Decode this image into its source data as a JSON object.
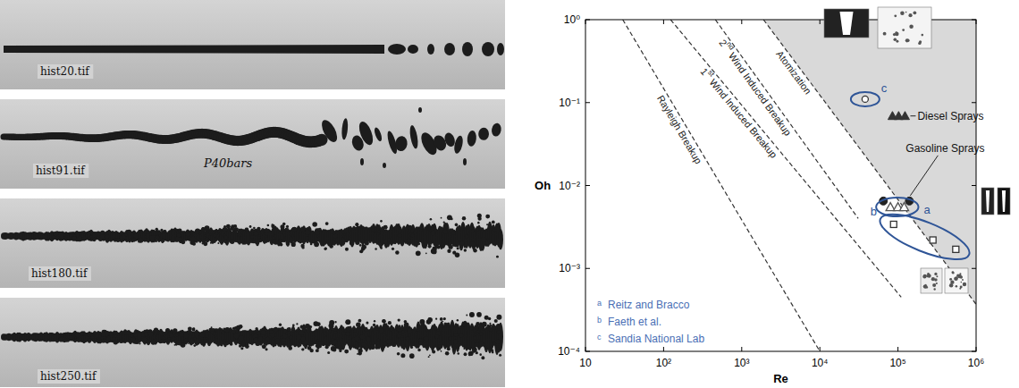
{
  "chart_data": {
    "type": "scatter",
    "x_label": "Re",
    "y_label": "Oh",
    "log": true,
    "xlim": [
      10,
      1000000
    ],
    "ylim": [
      0.0001,
      1
    ],
    "xticks": [
      10,
      {
        "value": 100,
        "label": "10²"
      },
      {
        "value": 1000,
        "label": "10³"
      },
      {
        "value": 10000,
        "label": "10⁴"
      },
      {
        "value": 100000,
        "label": "10⁵"
      },
      {
        "value": 1000000,
        "label": "10⁶"
      }
    ],
    "yticks": [
      {
        "value": 0.0001,
        "label": "10⁻⁴"
      },
      {
        "value": 0.001,
        "label": "10⁻³"
      },
      {
        "value": 0.01,
        "label": "10⁻²"
      },
      {
        "value": 0.1,
        "label": "10⁻¹"
      },
      {
        "value": 1,
        "label": "10⁰"
      }
    ],
    "legend": "bottom-left",
    "series": [
      {
        "name": "Atomization",
        "type": "area",
        "color": "#d9d9d9",
        "line_style": "dashed",
        "x": [
          1900,
          1000000
        ],
        "values": [
          1,
          0.00037
        ]
      },
      {
        "name": "Rayleigh Breakup",
        "type": "line",
        "color": "#333333",
        "line_style": "dashed",
        "x": [
          30,
          10000
        ],
        "values": [
          1,
          0.0001
        ]
      },
      {
        "name": "1st Wind Induced Breakup",
        "type": "line",
        "color": "#333333",
        "line_style": "dashed",
        "x": [
          123,
          110000
        ],
        "values": [
          1,
          0.00045
        ]
      },
      {
        "name": "2nd Wind Induced Breakup",
        "type": "line",
        "color": "#333333",
        "line_style": "dashed",
        "x": [
          460,
          31000
        ],
        "values": [
          1,
          0.004
        ]
      },
      {
        "name": "Diesel Sprays",
        "type": "scatter",
        "marker": "triangle",
        "color": "#333333",
        "x": [
          85000,
          102000,
          123000
        ],
        "values": [
          0.069,
          0.069,
          0.069
        ]
      },
      {
        "name": "Gasoline Sprays",
        "type": "scatter",
        "marker": "circle",
        "color": "#222222",
        "x": [
          65000,
          140000
        ],
        "values": [
          0.0065,
          0.0065
        ]
      },
      {
        "name": "Reitz and Bracco",
        "letter": "a",
        "type": "scatter",
        "marker": "open-triangle",
        "color": "#555555",
        "x": [
          80000,
          100000,
          120000
        ],
        "values": [
          0.0055,
          0.0055,
          0.0055
        ]
      },
      {
        "name": "Faeth et al.",
        "letter": "b",
        "type": "scatter",
        "marker": "open-square",
        "color": "#333333",
        "x": [
          88000,
          280000,
          550000
        ],
        "values": [
          0.0034,
          0.0022,
          0.0017
        ]
      },
      {
        "name": "Sandia National Lab",
        "letter": "c",
        "type": "scatter",
        "marker": "open-circle",
        "color": "#333333",
        "x": [
          38000
        ],
        "values": [
          0.11
        ]
      }
    ]
  },
  "photos": [
    {
      "label": "hist20.tif"
    },
    {
      "label": "hist91.tif",
      "note": "P40bars"
    },
    {
      "label": "hist180.tif"
    },
    {
      "label": "hist250.tif"
    }
  ]
}
